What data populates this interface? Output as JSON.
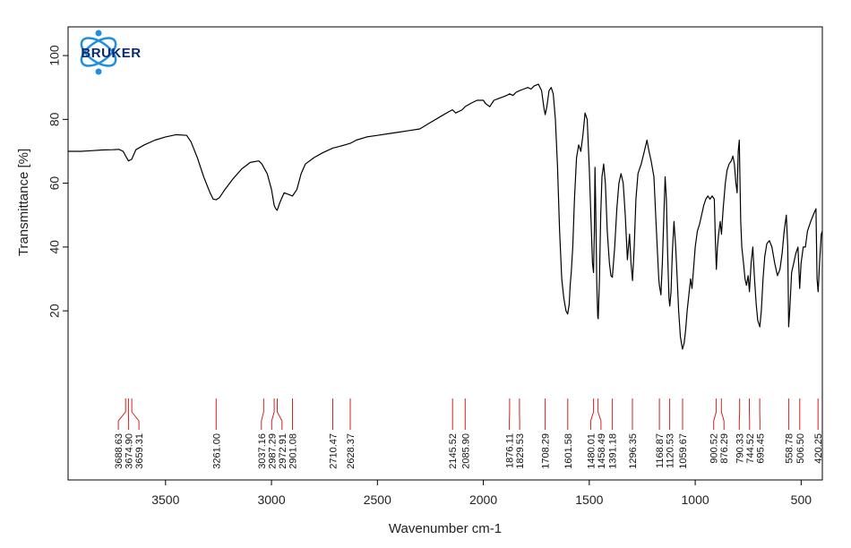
{
  "logo": {
    "text": "BRUKER",
    "color": "#0b2a6e",
    "accent": "#1e8fe0"
  },
  "chart_data": {
    "type": "line",
    "xlabel": "Wavenumber cm-1",
    "ylabel": "Transmittance [%]",
    "xlim": [
      3960,
      400
    ],
    "x_reversed": true,
    "ylim": [
      -33,
      109
    ],
    "x_ticks": [
      3500,
      3000,
      2500,
      2000,
      1500,
      1000,
      500
    ],
    "y_ticks": [
      20,
      40,
      60,
      80,
      100
    ],
    "grid": false,
    "line_color": "#000000",
    "peak_marker_color": "#d62020",
    "series": [
      {
        "points": [
          [
            3960,
            70.0
          ],
          [
            3900,
            70.0
          ],
          [
            3850,
            70.2
          ],
          [
            3800,
            70.4
          ],
          [
            3750,
            70.5
          ],
          [
            3720,
            70.6
          ],
          [
            3700,
            70.0
          ],
          [
            3688,
            68.5
          ],
          [
            3675,
            67.0
          ],
          [
            3660,
            67.5
          ],
          [
            3640,
            70.5
          ],
          [
            3600,
            72.0
          ],
          [
            3550,
            73.5
          ],
          [
            3500,
            74.5
          ],
          [
            3450,
            75.2
          ],
          [
            3400,
            75.0
          ],
          [
            3380,
            73.0
          ],
          [
            3350,
            68.0
          ],
          [
            3320,
            62.0
          ],
          [
            3290,
            57.0
          ],
          [
            3275,
            55.0
          ],
          [
            3261,
            54.8
          ],
          [
            3245,
            55.5
          ],
          [
            3220,
            58.0
          ],
          [
            3180,
            61.5
          ],
          [
            3140,
            64.5
          ],
          [
            3100,
            66.5
          ],
          [
            3060,
            67.0
          ],
          [
            3045,
            66.0
          ],
          [
            3037,
            65.0
          ],
          [
            3020,
            63.0
          ],
          [
            3000,
            58.0
          ],
          [
            2987,
            53.0
          ],
          [
            2980,
            52.0
          ],
          [
            2973,
            51.5
          ],
          [
            2960,
            54.0
          ],
          [
            2940,
            57.0
          ],
          [
            2920,
            56.5
          ],
          [
            2901,
            56.0
          ],
          [
            2880,
            58.0
          ],
          [
            2860,
            63.0
          ],
          [
            2840,
            66.0
          ],
          [
            2800,
            68.0
          ],
          [
            2760,
            69.5
          ],
          [
            2711,
            71.0
          ],
          [
            2680,
            71.5
          ],
          [
            2628,
            72.5
          ],
          [
            2600,
            73.5
          ],
          [
            2550,
            74.5
          ],
          [
            2500,
            75.0
          ],
          [
            2450,
            75.5
          ],
          [
            2400,
            76.0
          ],
          [
            2350,
            76.5
          ],
          [
            2300,
            77.0
          ],
          [
            2250,
            79.0
          ],
          [
            2200,
            81.0
          ],
          [
            2160,
            82.5
          ],
          [
            2146,
            83.0
          ],
          [
            2130,
            82.0
          ],
          [
            2100,
            83.0
          ],
          [
            2086,
            84.0
          ],
          [
            2060,
            85.0
          ],
          [
            2030,
            86.0
          ],
          [
            2000,
            86.0
          ],
          [
            1990,
            85.0
          ],
          [
            1970,
            84.0
          ],
          [
            1950,
            86.0
          ],
          [
            1930,
            86.5
          ],
          [
            1910,
            87.0
          ],
          [
            1890,
            87.5
          ],
          [
            1876,
            88.0
          ],
          [
            1860,
            87.5
          ],
          [
            1845,
            88.5
          ],
          [
            1830,
            89.0
          ],
          [
            1810,
            89.5
          ],
          [
            1790,
            90.0
          ],
          [
            1775,
            89.5
          ],
          [
            1760,
            90.5
          ],
          [
            1740,
            91.0
          ],
          [
            1725,
            89.0
          ],
          [
            1715,
            84.0
          ],
          [
            1708,
            81.5
          ],
          [
            1700,
            84.0
          ],
          [
            1690,
            89.0
          ],
          [
            1680,
            90.0
          ],
          [
            1670,
            88.0
          ],
          [
            1660,
            80.0
          ],
          [
            1650,
            65.0
          ],
          [
            1640,
            45.0
          ],
          [
            1630,
            30.0
          ],
          [
            1620,
            24.0
          ],
          [
            1610,
            20.0
          ],
          [
            1602,
            19.0
          ],
          [
            1595,
            22.0
          ],
          [
            1590,
            28.0
          ],
          [
            1585,
            32.0
          ],
          [
            1578,
            40.0
          ],
          [
            1570,
            55.0
          ],
          [
            1560,
            68.0
          ],
          [
            1550,
            72.0
          ],
          [
            1540,
            70.0
          ],
          [
            1530,
            75.0
          ],
          [
            1520,
            82.0
          ],
          [
            1510,
            80.0
          ],
          [
            1500,
            65.0
          ],
          [
            1490,
            45.0
          ],
          [
            1485,
            35.0
          ],
          [
            1480,
            32.0
          ],
          [
            1476,
            45.0
          ],
          [
            1473,
            65.0
          ],
          [
            1470,
            55.0
          ],
          [
            1465,
            30.0
          ],
          [
            1460,
            18.0
          ],
          [
            1458,
            17.5
          ],
          [
            1452,
            30.0
          ],
          [
            1446,
            50.0
          ],
          [
            1440,
            62.0
          ],
          [
            1432,
            66.0
          ],
          [
            1424,
            60.0
          ],
          [
            1415,
            45.0
          ],
          [
            1405,
            35.0
          ],
          [
            1398,
            31.0
          ],
          [
            1391,
            30.5
          ],
          [
            1380,
            40.0
          ],
          [
            1370,
            52.0
          ],
          [
            1360,
            60.0
          ],
          [
            1350,
            63.0
          ],
          [
            1340,
            60.0
          ],
          [
            1330,
            50.0
          ],
          [
            1320,
            36.0
          ],
          [
            1310,
            44.0
          ],
          [
            1303,
            35.0
          ],
          [
            1296,
            29.5
          ],
          [
            1288,
            40.0
          ],
          [
            1280,
            55.0
          ],
          [
            1270,
            63.0
          ],
          [
            1255,
            66.0
          ],
          [
            1240,
            70.0
          ],
          [
            1228,
            73.5
          ],
          [
            1218,
            70.0
          ],
          [
            1208,
            67.0
          ],
          [
            1195,
            62.0
          ],
          [
            1185,
            48.0
          ],
          [
            1178,
            38.0
          ],
          [
            1172,
            30.0
          ],
          [
            1169,
            28.0
          ],
          [
            1162,
            25.0
          ],
          [
            1155,
            35.0
          ],
          [
            1148,
            50.0
          ],
          [
            1142,
            62.0
          ],
          [
            1136,
            55.0
          ],
          [
            1130,
            38.0
          ],
          [
            1124,
            24.0
          ],
          [
            1120,
            21.5
          ],
          [
            1114,
            26.0
          ],
          [
            1108,
            38.0
          ],
          [
            1100,
            48.0
          ],
          [
            1092,
            40.0
          ],
          [
            1085,
            30.0
          ],
          [
            1078,
            20.0
          ],
          [
            1070,
            12.0
          ],
          [
            1063,
            9.0
          ],
          [
            1060,
            8.0
          ],
          [
            1052,
            10.0
          ],
          [
            1045,
            14.0
          ],
          [
            1038,
            20.0
          ],
          [
            1030,
            25.0
          ],
          [
            1022,
            30.0
          ],
          [
            1015,
            27.0
          ],
          [
            1008,
            33.0
          ],
          [
            1000,
            40.0
          ],
          [
            990,
            45.0
          ],
          [
            980,
            47.0
          ],
          [
            970,
            50.0
          ],
          [
            960,
            53.0
          ],
          [
            950,
            55.0
          ],
          [
            940,
            56.0
          ],
          [
            930,
            55.0
          ],
          [
            920,
            56.0
          ],
          [
            910,
            55.0
          ],
          [
            904,
            40.0
          ],
          [
            900,
            33.0
          ],
          [
            895,
            40.0
          ],
          [
            888,
            45.0
          ],
          [
            882,
            48.0
          ],
          [
            876,
            44.0
          ],
          [
            868,
            52.0
          ],
          [
            858,
            60.0
          ],
          [
            850,
            64.0
          ],
          [
            840,
            66.0
          ],
          [
            830,
            67.0
          ],
          [
            822,
            68.5
          ],
          [
            815,
            66.0
          ],
          [
            808,
            60.0
          ],
          [
            802,
            57.0
          ],
          [
            797,
            70.0
          ],
          [
            792,
            73.5
          ],
          [
            790,
            65.0
          ],
          [
            785,
            48.0
          ],
          [
            780,
            40.0
          ],
          [
            772,
            35.0
          ],
          [
            765,
            30.0
          ],
          [
            758,
            28.0
          ],
          [
            750,
            31.0
          ],
          [
            744,
            26.0
          ],
          [
            736,
            35.0
          ],
          [
            728,
            40.0
          ],
          [
            720,
            30.0
          ],
          [
            712,
            22.0
          ],
          [
            705,
            17.0
          ],
          [
            695,
            15.0
          ],
          [
            688,
            20.0
          ],
          [
            680,
            30.0
          ],
          [
            672,
            37.0
          ],
          [
            662,
            41.0
          ],
          [
            650,
            42.0
          ],
          [
            638,
            40.0
          ],
          [
            625,
            35.0
          ],
          [
            612,
            31.0
          ],
          [
            600,
            33.0
          ],
          [
            590,
            38.0
          ],
          [
            580,
            45.0
          ],
          [
            570,
            50.0
          ],
          [
            563,
            40.0
          ],
          [
            559,
            15.0
          ],
          [
            554,
            20.0
          ],
          [
            545,
            32.0
          ],
          [
            535,
            35.0
          ],
          [
            525,
            38.0
          ],
          [
            515,
            40.0
          ],
          [
            507,
            27.0
          ],
          [
            500,
            35.0
          ],
          [
            490,
            40.0
          ],
          [
            480,
            40.0
          ],
          [
            470,
            45.0
          ],
          [
            455,
            48.0
          ],
          [
            440,
            50.5
          ],
          [
            430,
            52.0
          ],
          [
            425,
            30.0
          ],
          [
            420,
            26.0
          ],
          [
            413,
            35.0
          ],
          [
            405,
            44.0
          ],
          [
            400,
            45.0
          ]
        ]
      }
    ],
    "peak_labels": [
      "3688.63",
      "3674.90",
      "3659.31",
      "3261.00",
      "3037.16",
      "2987.29",
      "2972.91",
      "2901.08",
      "2710.47",
      "2628.37",
      "2145.52",
      "2085.90",
      "1876.11",
      "1829.53",
      "1708.29",
      "1601.58",
      "1480.01",
      "1458.49",
      "1391.18",
      "1296.35",
      "1168.87",
      "1120.53",
      "1059.67",
      "900.52",
      "876.29",
      "790.33",
      "744.52",
      "695.45",
      "558.78",
      "506.50",
      "420.25"
    ]
  }
}
